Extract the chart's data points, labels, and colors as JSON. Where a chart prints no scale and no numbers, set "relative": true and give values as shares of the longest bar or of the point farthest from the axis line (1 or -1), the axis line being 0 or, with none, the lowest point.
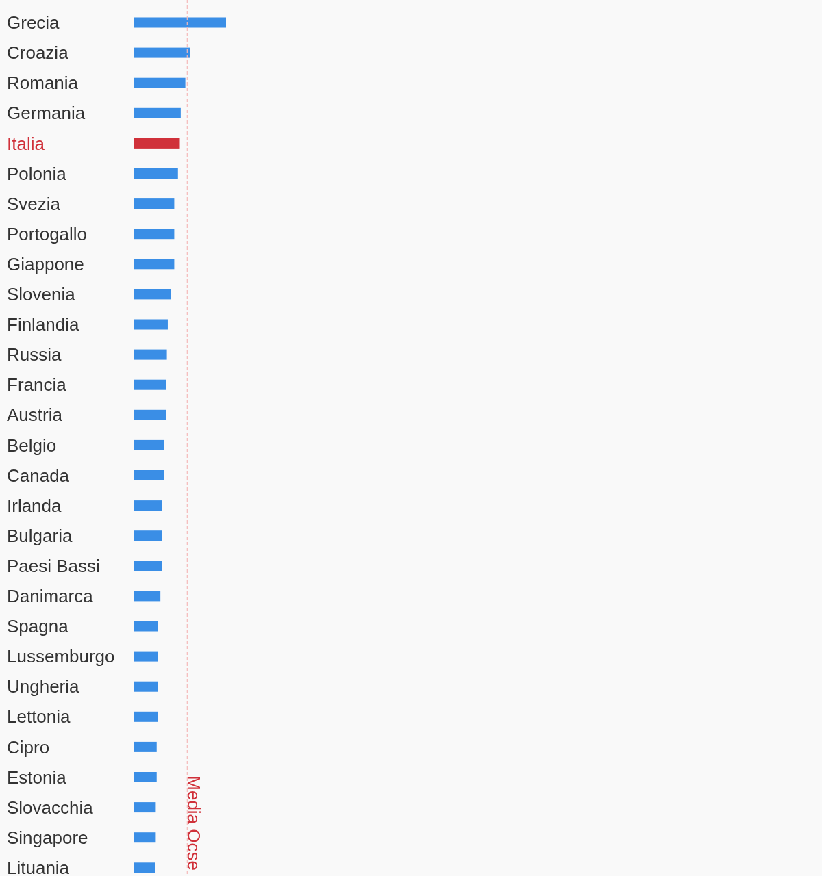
{
  "chart_data": {
    "type": "bar",
    "orientation": "horizontal",
    "relative": true,
    "categories": [
      "Grecia",
      "Croazia",
      "Romania",
      "Germania",
      "Italia",
      "Polonia",
      "Svezia",
      "Portogallo",
      "Giappone",
      "Slovenia",
      "Finlandia",
      "Russia",
      "Francia",
      "Austria",
      "Belgio",
      "Canada",
      "Irlanda",
      "Bulgaria",
      "Paesi Bassi",
      "Danimarca",
      "Spagna",
      "Lussemburgo",
      "Ungheria",
      "Lettonia",
      "Cipro",
      "Estonia",
      "Slovacchia",
      "Singapore",
      "Lituania"
    ],
    "values": [
      1,
      0.61,
      0.56,
      0.51,
      0.5,
      0.48,
      0.44,
      0.44,
      0.44,
      0.4,
      0.37,
      0.36,
      0.35,
      0.35,
      0.33,
      0.33,
      0.31,
      0.31,
      0.31,
      0.29,
      0.26,
      0.26,
      0.26,
      0.26,
      0.25,
      0.25,
      0.24,
      0.24,
      0.23
    ],
    "colors": [
      "#3a8ee6",
      "#3a8ee6",
      "#3a8ee6",
      "#3a8ee6",
      "#d0313a",
      "#3a8ee6",
      "#3a8ee6",
      "#3a8ee6",
      "#3a8ee6",
      "#3a8ee6",
      "#3a8ee6",
      "#3a8ee6",
      "#3a8ee6",
      "#3a8ee6",
      "#3a8ee6",
      "#3a8ee6",
      "#3a8ee6",
      "#3a8ee6",
      "#3a8ee6",
      "#3a8ee6",
      "#3a8ee6",
      "#3a8ee6",
      "#3a8ee6",
      "#3a8ee6",
      "#3a8ee6",
      "#3a8ee6",
      "#3a8ee6",
      "#3a8ee6",
      "#3a8ee6"
    ],
    "ref_lines": [
      {
        "axis": "x",
        "value": 0.58,
        "label": "Media Ocse",
        "color": "#f4b8b8",
        "line_style": "dashed"
      }
    ]
  }
}
